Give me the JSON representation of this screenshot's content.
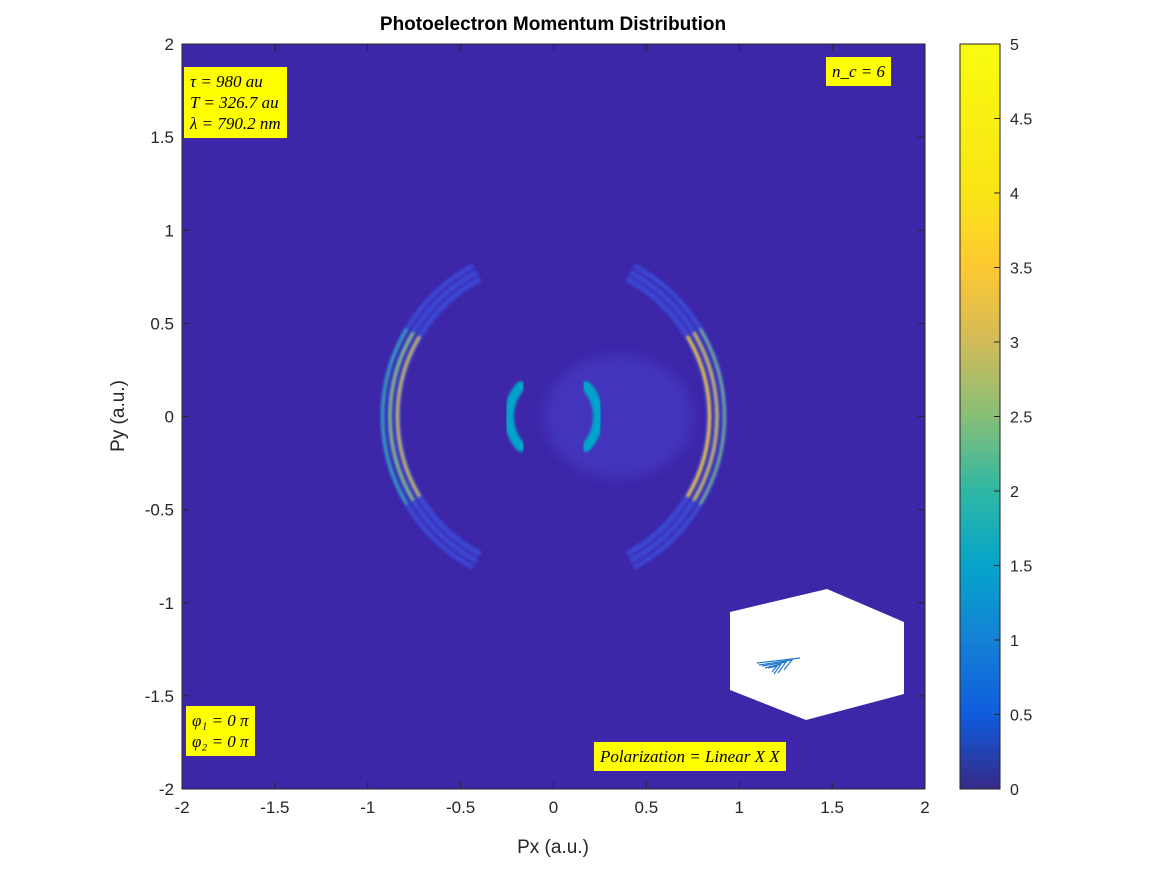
{
  "chart_data": {
    "type": "heatmap",
    "title": "Photoelectron Momentum Distribution",
    "xlabel": "Px (a.u.)",
    "ylabel": "Py (a.u.)",
    "xlim": [
      -2,
      2
    ],
    "ylim": [
      -2,
      2
    ],
    "xticks": [
      "-2",
      "-1.5",
      "-1",
      "-0.5",
      "0",
      "0.5",
      "1",
      "1.5",
      "2"
    ],
    "yticks": [
      "2",
      "1.5",
      "1",
      "0.5",
      "0",
      "-0.5",
      "-1",
      "-1.5",
      "-2"
    ],
    "colorbar": {
      "colormap": "parula",
      "range": [
        0,
        5
      ],
      "ticks": [
        "5",
        "4.5",
        "4",
        "3.5",
        "3",
        "2.5",
        "2",
        "1.5",
        "1",
        "0.5",
        "0"
      ]
    },
    "grid": false,
    "features": {
      "outer_rings": {
        "radii": [
          0.84,
          0.88,
          0.92
        ],
        "angular_extent_deg": 62,
        "peak_right": 3.5,
        "peak_left": 2.6
      },
      "inner_lobes": {
        "radius": 0.24,
        "peak": 1.5
      }
    }
  },
  "annotations": {
    "params": [
      "τ = 980 au",
      "T = 326.7 au",
      "λ = 790.2 nm"
    ],
    "nc": "n_c = 6",
    "phases": [
      "φ₁ = 0 π",
      "φ₂ = 0 π"
    ],
    "polarization": "Polarization = Linear X X"
  },
  "colors": {
    "background_field": "#3d26a8",
    "annotation_bg": "#ffff00",
    "inset_line": "#1f77d0"
  }
}
